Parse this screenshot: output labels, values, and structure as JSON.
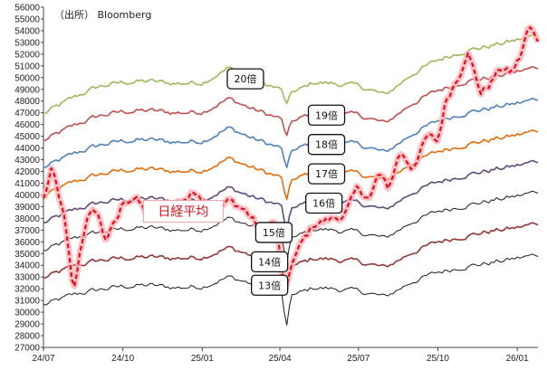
{
  "source": "（出所） Bloomberg",
  "chart_data": {
    "type": "line",
    "ylim": [
      27000,
      56000
    ],
    "ystep": 1000,
    "xlim": [
      "2024-07-01",
      "2026-01-25"
    ],
    "xticks": [
      "24/07",
      "24/10",
      "25/01",
      "25/04",
      "25/07",
      "25/10",
      "26/01"
    ],
    "xtick_dates": [
      "2024-07-01",
      "2024-10-01",
      "2025-01-01",
      "2025-04-01",
      "2025-07-01",
      "2025-10-01",
      "2026-01-01"
    ],
    "grid": false,
    "series": [
      {
        "name": "20倍",
        "color": "#9bbb59",
        "label_at": [
          "2025-02-20",
          49900
        ],
        "points": [
          [
            "2024-07-01",
            46900
          ],
          [
            "2024-08-05",
            48300
          ],
          [
            "2024-09-01",
            49200
          ],
          [
            "2024-10-01",
            49600
          ],
          [
            "2024-11-01",
            49700
          ],
          [
            "2024-12-01",
            49500
          ],
          [
            "2025-01-01",
            49600
          ],
          [
            "2025-02-01",
            50800
          ],
          [
            "2025-03-01",
            49800
          ],
          [
            "2025-04-01",
            49000
          ],
          [
            "2025-04-20",
            48800
          ],
          [
            "2025-05-10",
            49600
          ],
          [
            "2025-06-01",
            49500
          ],
          [
            "2025-07-01",
            49300
          ],
          [
            "2025-08-01",
            48500
          ],
          [
            "2025-09-01",
            50300
          ],
          [
            "2025-10-01",
            51500
          ],
          [
            "2025-11-01",
            52300
          ],
          [
            "2025-12-01",
            52700
          ],
          [
            "2026-01-01",
            53200
          ],
          [
            "2026-01-25",
            53600
          ]
        ]
      },
      {
        "name": "19倍",
        "color": "#c0504d",
        "label_at": [
          "2025-05-25",
          46800
        ],
        "points": [
          [
            "2024-07-01",
            44600
          ],
          [
            "2024-08-05",
            45900
          ],
          [
            "2024-09-01",
            46700
          ],
          [
            "2024-10-01",
            47100
          ],
          [
            "2024-11-01",
            47200
          ],
          [
            "2024-12-01",
            47000
          ],
          [
            "2025-01-01",
            47100
          ],
          [
            "2025-02-01",
            48200
          ],
          [
            "2025-03-01",
            47300
          ],
          [
            "2025-04-01",
            46500
          ],
          [
            "2025-04-20",
            46300
          ],
          [
            "2025-05-10",
            47100
          ],
          [
            "2025-06-01",
            47000
          ],
          [
            "2025-07-01",
            46800
          ],
          [
            "2025-08-01",
            46100
          ],
          [
            "2025-09-01",
            47800
          ],
          [
            "2025-10-01",
            48900
          ],
          [
            "2025-11-01",
            49700
          ],
          [
            "2025-12-01",
            50000
          ],
          [
            "2026-01-01",
            50500
          ],
          [
            "2026-01-25",
            50900
          ]
        ]
      },
      {
        "name": "18倍",
        "color": "#4f81bd",
        "label_at": [
          "2025-05-25",
          44300
        ],
        "points": [
          [
            "2024-07-01",
            42300
          ],
          [
            "2024-08-05",
            43500
          ],
          [
            "2024-09-01",
            44200
          ],
          [
            "2024-10-01",
            44600
          ],
          [
            "2024-11-01",
            44700
          ],
          [
            "2024-12-01",
            44500
          ],
          [
            "2025-01-01",
            44600
          ],
          [
            "2025-02-01",
            45700
          ],
          [
            "2025-03-01",
            44800
          ],
          [
            "2025-04-01",
            44000
          ],
          [
            "2025-04-20",
            43800
          ],
          [
            "2025-05-10",
            44600
          ],
          [
            "2025-06-01",
            44500
          ],
          [
            "2025-07-01",
            44300
          ],
          [
            "2025-08-01",
            43600
          ],
          [
            "2025-09-01",
            45200
          ],
          [
            "2025-10-01",
            46300
          ],
          [
            "2025-11-01",
            47000
          ],
          [
            "2025-12-01",
            47400
          ],
          [
            "2026-01-01",
            47800
          ],
          [
            "2026-01-25",
            48200
          ]
        ]
      },
      {
        "name": "17倍",
        "color": "#e46c0a",
        "label_at": [
          "2025-05-25",
          41800
        ],
        "points": [
          [
            "2024-07-01",
            39900
          ],
          [
            "2024-08-05",
            41100
          ],
          [
            "2024-09-01",
            41700
          ],
          [
            "2024-10-01",
            42100
          ],
          [
            "2024-11-01",
            42200
          ],
          [
            "2024-12-01",
            42000
          ],
          [
            "2025-01-01",
            42100
          ],
          [
            "2025-02-01",
            43100
          ],
          [
            "2025-03-01",
            42300
          ],
          [
            "2025-04-01",
            41500
          ],
          [
            "2025-04-20",
            41300
          ],
          [
            "2025-05-10",
            42100
          ],
          [
            "2025-06-01",
            42000
          ],
          [
            "2025-07-01",
            41800
          ],
          [
            "2025-08-01",
            41200
          ],
          [
            "2025-09-01",
            42700
          ],
          [
            "2025-10-01",
            43700
          ],
          [
            "2025-11-01",
            44300
          ],
          [
            "2025-12-01",
            44700
          ],
          [
            "2026-01-01",
            45100
          ],
          [
            "2026-01-25",
            45500
          ]
        ]
      },
      {
        "name": "16倍",
        "color": "#604a7b",
        "label_at": [
          "2025-05-22",
          39300
        ],
        "points": [
          [
            "2024-07-01",
            37600
          ],
          [
            "2024-08-05",
            38700
          ],
          [
            "2024-09-01",
            39300
          ],
          [
            "2024-10-01",
            39600
          ],
          [
            "2024-11-01",
            39700
          ],
          [
            "2024-12-01",
            39500
          ],
          [
            "2025-01-01",
            39600
          ],
          [
            "2025-02-01",
            40600
          ],
          [
            "2025-03-01",
            39800
          ],
          [
            "2025-04-01",
            39100
          ],
          [
            "2025-04-20",
            38900
          ],
          [
            "2025-05-10",
            39600
          ],
          [
            "2025-06-01",
            39500
          ],
          [
            "2025-07-01",
            39300
          ],
          [
            "2025-08-01",
            38700
          ],
          [
            "2025-09-01",
            40200
          ],
          [
            "2025-10-01",
            41100
          ],
          [
            "2025-11-01",
            41700
          ],
          [
            "2025-12-01",
            42100
          ],
          [
            "2026-01-01",
            42500
          ],
          [
            "2026-01-25",
            42900
          ]
        ]
      },
      {
        "name": "15倍",
        "color": "#1a1a1a",
        "label_at": [
          "2025-03-25",
          36800
        ],
        "points": [
          [
            "2024-07-01",
            35200
          ],
          [
            "2024-08-05",
            36300
          ],
          [
            "2024-09-01",
            36800
          ],
          [
            "2024-10-01",
            37100
          ],
          [
            "2024-11-01",
            37200
          ],
          [
            "2024-12-01",
            37000
          ],
          [
            "2025-01-01",
            37100
          ],
          [
            "2025-02-01",
            38000
          ],
          [
            "2025-03-01",
            37300
          ],
          [
            "2025-04-01",
            36600
          ],
          [
            "2025-04-20",
            36400
          ],
          [
            "2025-05-10",
            37100
          ],
          [
            "2025-06-01",
            37000
          ],
          [
            "2025-07-01",
            36800
          ],
          [
            "2025-08-01",
            36300
          ],
          [
            "2025-09-01",
            37700
          ],
          [
            "2025-10-01",
            38600
          ],
          [
            "2025-11-01",
            39100
          ],
          [
            "2025-12-01",
            39500
          ],
          [
            "2026-01-01",
            39900
          ],
          [
            "2026-01-25",
            40300
          ]
        ]
      },
      {
        "name": "14倍",
        "color": "#953735",
        "label_at": [
          "2025-03-20",
          34300
        ],
        "points": [
          [
            "2024-07-01",
            32900
          ],
          [
            "2024-08-05",
            33900
          ],
          [
            "2024-09-01",
            34400
          ],
          [
            "2024-10-01",
            34600
          ],
          [
            "2024-11-01",
            34700
          ],
          [
            "2024-12-01",
            34600
          ],
          [
            "2025-01-01",
            34700
          ],
          [
            "2025-02-01",
            35500
          ],
          [
            "2025-03-01",
            34800
          ],
          [
            "2025-04-01",
            34200
          ],
          [
            "2025-04-20",
            34000
          ],
          [
            "2025-05-10",
            34600
          ],
          [
            "2025-06-01",
            34500
          ],
          [
            "2025-07-01",
            34300
          ],
          [
            "2025-08-01",
            33800
          ],
          [
            "2025-09-01",
            35100
          ],
          [
            "2025-10-01",
            36000
          ],
          [
            "2025-11-01",
            36500
          ],
          [
            "2025-12-01",
            36900
          ],
          [
            "2026-01-01",
            37200
          ],
          [
            "2026-01-25",
            37600
          ]
        ]
      },
      {
        "name": "13倍",
        "color": "#1a1a1a",
        "label_at": [
          "2025-03-20",
          32300
        ],
        "points": [
          [
            "2024-07-01",
            30600
          ],
          [
            "2024-08-05",
            31500
          ],
          [
            "2024-09-01",
            31900
          ],
          [
            "2024-10-01",
            32200
          ],
          [
            "2024-11-01",
            32300
          ],
          [
            "2024-12-01",
            32100
          ],
          [
            "2025-01-01",
            32200
          ],
          [
            "2025-02-01",
            33000
          ],
          [
            "2025-03-01",
            32400
          ],
          [
            "2025-04-01",
            31700
          ],
          [
            "2025-04-20",
            31500
          ],
          [
            "2025-05-10",
            32100
          ],
          [
            "2025-06-01",
            32000
          ],
          [
            "2025-07-01",
            31800
          ],
          [
            "2025-08-01",
            31300
          ],
          [
            "2025-09-01",
            32600
          ],
          [
            "2025-10-01",
            33400
          ],
          [
            "2025-11-01",
            33900
          ],
          [
            "2025-12-01",
            34200
          ],
          [
            "2026-01-01",
            34600
          ],
          [
            "2026-01-25",
            34900
          ]
        ]
      },
      {
        "name": "日経平均",
        "color": "#e0101a",
        "label_at": [
          "2024-12-10",
          38600
        ],
        "points": [
          [
            "2024-07-01",
            39600
          ],
          [
            "2024-07-11",
            42200
          ],
          [
            "2024-07-25",
            38000
          ],
          [
            "2024-08-05",
            31500
          ],
          [
            "2024-08-12",
            35000
          ],
          [
            "2024-08-20",
            38000
          ],
          [
            "2024-09-01",
            38700
          ],
          [
            "2024-09-10",
            36200
          ],
          [
            "2024-09-25",
            37900
          ],
          [
            "2024-10-01",
            39400
          ],
          [
            "2024-10-15",
            39800
          ],
          [
            "2024-11-01",
            38100
          ],
          [
            "2024-11-20",
            38400
          ],
          [
            "2024-12-01",
            39300
          ],
          [
            "2024-12-27",
            40300
          ],
          [
            "2025-01-15",
            38500
          ],
          [
            "2025-02-01",
            39500
          ],
          [
            "2025-02-20",
            38700
          ],
          [
            "2025-03-10",
            37000
          ],
          [
            "2025-03-27",
            37800
          ],
          [
            "2025-04-07",
            31200
          ],
          [
            "2025-04-15",
            34200
          ],
          [
            "2025-04-25",
            35700
          ],
          [
            "2025-05-10",
            37500
          ],
          [
            "2025-05-30",
            37900
          ],
          [
            "2025-06-15",
            38300
          ],
          [
            "2025-06-30",
            40500
          ],
          [
            "2025-07-15",
            39700
          ],
          [
            "2025-07-24",
            41800
          ],
          [
            "2025-08-05",
            40500
          ],
          [
            "2025-08-18",
            43700
          ],
          [
            "2025-09-01",
            42300
          ],
          [
            "2025-09-19",
            45000
          ],
          [
            "2025-10-01",
            44500
          ],
          [
            "2025-10-10",
            48000
          ],
          [
            "2025-10-27",
            50500
          ],
          [
            "2025-11-04",
            52400
          ],
          [
            "2025-11-20",
            48700
          ],
          [
            "2025-12-01",
            49500
          ],
          [
            "2025-12-12",
            50800
          ],
          [
            "2025-12-25",
            50400
          ],
          [
            "2026-01-05",
            51800
          ],
          [
            "2026-01-14",
            54300
          ],
          [
            "2026-01-25",
            53300
          ]
        ]
      }
    ]
  }
}
